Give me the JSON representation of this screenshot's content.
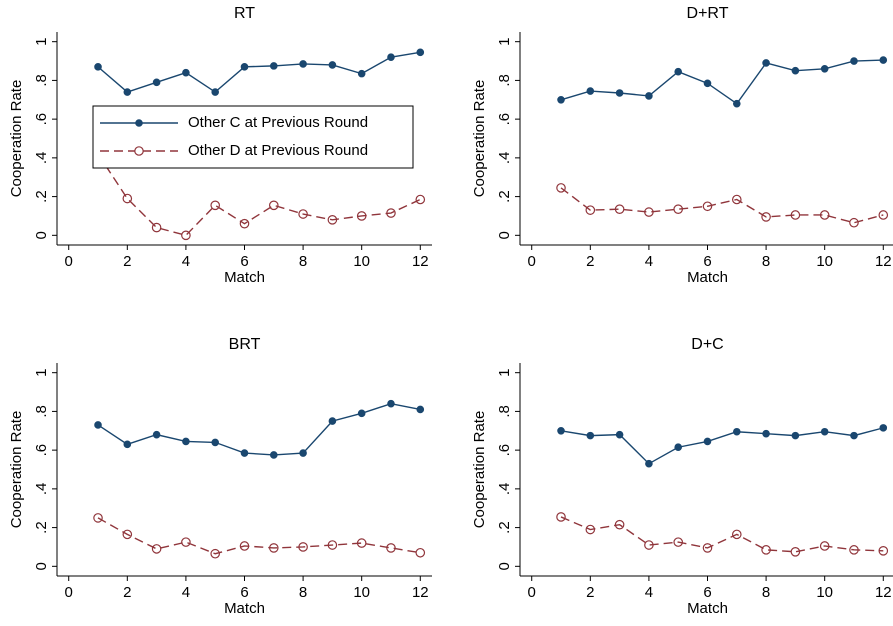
{
  "chart_data": [
    {
      "type": "line",
      "title": "RT",
      "xlabel": "Match",
      "ylabel": "Cooperation Rate",
      "x": [
        1,
        2,
        3,
        4,
        5,
        6,
        7,
        8,
        9,
        10,
        11,
        12
      ],
      "series": [
        {
          "name": "Other C at Previous Round",
          "color": "#1a476f",
          "values": [
            0.87,
            0.74,
            0.79,
            0.84,
            0.74,
            0.87,
            0.875,
            0.885,
            0.88,
            0.835,
            0.92,
            0.945
          ]
        },
        {
          "name": "Other D at Previous Round",
          "color": "#90353b",
          "values": [
            0.42,
            0.19,
            0.04,
            0.0,
            0.155,
            0.06,
            0.155,
            0.11,
            0.08,
            0.1,
            0.115,
            0.185
          ]
        }
      ],
      "xlim": [
        -0.4,
        12.4
      ],
      "xticks": [
        0,
        2,
        4,
        6,
        8,
        10,
        12
      ],
      "ylim": [
        -0.05,
        1.05
      ],
      "yticks": [
        0,
        {
          "value": 0.2,
          "label": ".2"
        },
        {
          "value": 0.4,
          "label": ".4"
        },
        {
          "value": 0.6,
          "label": ".6"
        },
        {
          "value": 0.8,
          "label": ".8"
        },
        1
      ],
      "legend": "upper left"
    },
    {
      "type": "line",
      "title": "D+RT",
      "xlabel": "Match",
      "ylabel": "Cooperation Rate",
      "x": [
        1,
        2,
        3,
        4,
        5,
        6,
        7,
        8,
        9,
        10,
        11,
        12
      ],
      "series": [
        {
          "color": "#1a476f",
          "values": [
            0.7,
            0.745,
            0.735,
            0.72,
            0.845,
            0.785,
            0.68,
            0.89,
            0.85,
            0.86,
            0.9,
            0.905
          ]
        },
        {
          "color": "#90353b",
          "values": [
            0.245,
            0.13,
            0.135,
            0.12,
            0.135,
            0.15,
            0.185,
            0.095,
            0.105,
            0.105,
            0.065,
            0.105
          ]
        }
      ],
      "xlim": [
        -0.4,
        12.4
      ],
      "xticks": [
        0,
        2,
        4,
        6,
        8,
        10,
        12
      ],
      "ylim": [
        -0.05,
        1.05
      ],
      "yticks": [
        0,
        {
          "value": 0.2,
          "label": ".2"
        },
        {
          "value": 0.4,
          "label": ".4"
        },
        {
          "value": 0.6,
          "label": ".6"
        },
        {
          "value": 0.8,
          "label": ".8"
        },
        1
      ]
    },
    {
      "type": "line",
      "title": "BRT",
      "xlabel": "Match",
      "ylabel": "Cooperation Rate",
      "x": [
        1,
        2,
        3,
        4,
        5,
        6,
        7,
        8,
        9,
        10,
        11,
        12
      ],
      "series": [
        {
          "color": "#1a476f",
          "values": [
            0.73,
            0.63,
            0.68,
            0.645,
            0.64,
            0.585,
            0.575,
            0.585,
            0.75,
            0.79,
            0.84,
            0.81
          ]
        },
        {
          "color": "#90353b",
          "values": [
            0.25,
            0.165,
            0.09,
            0.125,
            0.065,
            0.105,
            0.095,
            0.1,
            0.11,
            0.12,
            0.095,
            0.07
          ]
        }
      ],
      "xlim": [
        -0.4,
        12.4
      ],
      "xticks": [
        0,
        2,
        4,
        6,
        8,
        10,
        12
      ],
      "ylim": [
        -0.05,
        1.05
      ],
      "yticks": [
        0,
        {
          "value": 0.2,
          "label": ".2"
        },
        {
          "value": 0.4,
          "label": ".4"
        },
        {
          "value": 0.6,
          "label": ".6"
        },
        {
          "value": 0.8,
          "label": ".8"
        },
        1
      ]
    },
    {
      "type": "line",
      "title": "D+C",
      "xlabel": "Match",
      "ylabel": "Cooperation Rate",
      "x": [
        1,
        2,
        3,
        4,
        5,
        6,
        7,
        8,
        9,
        10,
        11,
        12
      ],
      "series": [
        {
          "color": "#1a476f",
          "values": [
            0.7,
            0.675,
            0.68,
            0.53,
            0.615,
            0.645,
            0.695,
            0.685,
            0.675,
            0.695,
            0.675,
            0.715
          ]
        },
        {
          "color": "#90353b",
          "values": [
            0.255,
            0.19,
            0.215,
            0.11,
            0.125,
            0.095,
            0.165,
            0.085,
            0.075,
            0.105,
            0.085,
            0.08
          ]
        }
      ],
      "xlim": [
        -0.4,
        12.4
      ],
      "xticks": [
        0,
        2,
        4,
        6,
        8,
        10,
        12
      ],
      "ylim": [
        -0.05,
        1.05
      ],
      "yticks": [
        0,
        {
          "value": 0.2,
          "label": ".2"
        },
        {
          "value": 0.4,
          "label": ".4"
        },
        {
          "value": 0.6,
          "label": ".6"
        },
        {
          "value": 0.8,
          "label": ".8"
        },
        1
      ]
    }
  ]
}
